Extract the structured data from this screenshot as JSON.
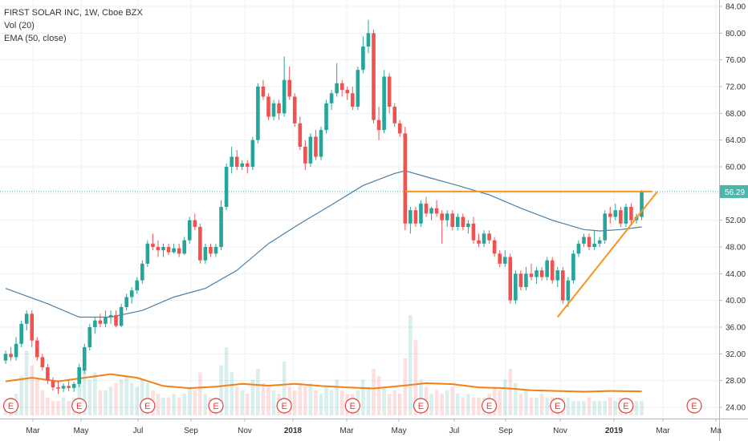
{
  "legend": {
    "title": "FIRST SOLAR INC, 1W, Cboe BZX",
    "volume": "Vol (20)",
    "ema": "EMA (50, close)"
  },
  "price_axis": {
    "ticks": [
      "84.00",
      "80.00",
      "76.00",
      "72.00",
      "68.00",
      "64.00",
      "60.00",
      "56.00",
      "52.00",
      "48.00",
      "44.00",
      "40.00",
      "36.00",
      "32.00",
      "28.00",
      "24.00"
    ],
    "last_price": "56.29"
  },
  "time_axis": {
    "labels": [
      "Mar",
      "May",
      "Jul",
      "Sep",
      "Nov",
      "2018",
      "Mar",
      "May",
      "Jul",
      "Sep",
      "Nov",
      "2019",
      "Mar",
      "Ma"
    ]
  },
  "earnings_marker": "E",
  "colors": {
    "up": "#26a69a",
    "down": "#ef5350",
    "ema": "#4a7fa8",
    "volume_ma": "#f57f17",
    "trendline": "#f7931e",
    "price_line": "#4db6ac",
    "grid": "#eef0f3",
    "marker": "#e53935"
  },
  "chart_data": {
    "type": "candlestick",
    "title": "FIRST SOLAR INC, 1W, Cboe BZX",
    "ylim": [
      22.5,
      85
    ],
    "x_range": [
      "2017-01-13",
      "2019-05-10"
    ],
    "weeks_start": "2017-01-20",
    "ohlc": [
      [
        31.0,
        32.5,
        30.5,
        32.0
      ],
      [
        32.0,
        33.0,
        31.0,
        31.5
      ],
      [
        31.5,
        34.5,
        31.0,
        33.5
      ],
      [
        33.5,
        37.0,
        33.0,
        36.5
      ],
      [
        36.5,
        38.5,
        35.5,
        38.0
      ],
      [
        38.0,
        38.5,
        33.0,
        34.0
      ],
      [
        34.0,
        34.5,
        31.0,
        31.5
      ],
      [
        31.5,
        32.0,
        29.5,
        30.0
      ],
      [
        30.0,
        30.5,
        27.5,
        28.0
      ],
      [
        28.0,
        28.5,
        26.5,
        27.0
      ],
      [
        27.0,
        28.0,
        26.0,
        26.8
      ],
      [
        26.8,
        27.6,
        26.3,
        27.2
      ],
      [
        27.2,
        28.0,
        26.4,
        26.9
      ],
      [
        26.9,
        27.8,
        26.3,
        27.5
      ],
      [
        27.5,
        30.5,
        27.0,
        30.0
      ],
      [
        29.5,
        33.5,
        29.0,
        33.0
      ],
      [
        33.0,
        36.5,
        32.5,
        36.0
      ],
      [
        36.0,
        37.5,
        35.0,
        37.0
      ],
      [
        37.0,
        38.0,
        36.0,
        36.5
      ],
      [
        36.5,
        38.5,
        36.0,
        37.5
      ],
      [
        37.5,
        38.5,
        36.5,
        37.8
      ],
      [
        37.8,
        38.5,
        36.0,
        36.2
      ],
      [
        36.2,
        39.5,
        36.0,
        39.0
      ],
      [
        39.0,
        41.0,
        38.5,
        40.5
      ],
      [
        40.5,
        42.0,
        39.5,
        41.5
      ],
      [
        41.5,
        43.5,
        41.0,
        43.0
      ],
      [
        43.0,
        46.0,
        42.5,
        45.5
      ],
      [
        45.5,
        49.0,
        45.0,
        48.5
      ],
      [
        48.5,
        50.0,
        47.5,
        48.0
      ],
      [
        48.0,
        49.0,
        46.5,
        47.5
      ],
      [
        47.5,
        48.5,
        46.5,
        48.0
      ],
      [
        48.0,
        48.5,
        46.8,
        47.2
      ],
      [
        47.2,
        48.5,
        47.0,
        47.8
      ],
      [
        47.8,
        48.5,
        46.5,
        47.0
      ],
      [
        47.0,
        49.5,
        46.8,
        49.0
      ],
      [
        49.0,
        52.5,
        48.5,
        52.0
      ],
      [
        52.0,
        53.0,
        50.5,
        51.0
      ],
      [
        51.0,
        51.5,
        45.5,
        46.0
      ],
      [
        46.0,
        48.5,
        45.5,
        48.0
      ],
      [
        48.0,
        48.5,
        46.5,
        47.0
      ],
      [
        47.0,
        48.5,
        46.5,
        48.0
      ],
      [
        48.0,
        55.0,
        47.5,
        54.0
      ],
      [
        54.0,
        60.5,
        53.5,
        60.0
      ],
      [
        60.0,
        63.0,
        59.0,
        61.5
      ],
      [
        61.5,
        62.5,
        59.5,
        60.0
      ],
      [
        60.0,
        61.0,
        59.5,
        60.5
      ],
      [
        60.5,
        61.0,
        59.0,
        60.0
      ],
      [
        60.0,
        64.5,
        59.5,
        64.0
      ],
      [
        64.0,
        72.5,
        63.5,
        72.0
      ],
      [
        72.0,
        73.0,
        70.0,
        70.5
      ],
      [
        70.5,
        71.0,
        67.0,
        67.5
      ],
      [
        67.5,
        70.0,
        67.0,
        69.5
      ],
      [
        69.5,
        70.0,
        67.0,
        68.0
      ],
      [
        68.0,
        76.5,
        67.5,
        73.0
      ],
      [
        73.0,
        75.0,
        70.0,
        70.5
      ],
      [
        70.5,
        71.0,
        66.0,
        66.5
      ],
      [
        66.5,
        67.5,
        62.5,
        63.0
      ],
      [
        63.0,
        64.0,
        59.5,
        60.5
      ],
      [
        60.5,
        65.0,
        60.0,
        64.5
      ],
      [
        64.5,
        65.5,
        61.0,
        61.5
      ],
      [
        61.5,
        66.0,
        61.0,
        65.5
      ],
      [
        65.5,
        70.0,
        65.0,
        69.5
      ],
      [
        69.5,
        71.5,
        68.5,
        71.0
      ],
      [
        71.0,
        75.5,
        70.5,
        72.5
      ],
      [
        72.5,
        73.0,
        70.5,
        71.5
      ],
      [
        71.5,
        72.0,
        70.0,
        71.0
      ],
      [
        71.0,
        72.0,
        68.5,
        69.0
      ],
      [
        69.0,
        75.0,
        68.5,
        74.5
      ],
      [
        74.5,
        79.5,
        74.0,
        78.0
      ],
      [
        78.0,
        82.0,
        77.0,
        80.0
      ],
      [
        80.0,
        80.5,
        66.5,
        67.0
      ],
      [
        67.0,
        69.0,
        64.0,
        65.5
      ],
      [
        65.5,
        74.5,
        65.0,
        73.5
      ],
      [
        73.5,
        74.0,
        68.0,
        69.0
      ],
      [
        69.0,
        69.5,
        66.0,
        66.5
      ],
      [
        66.5,
        67.0,
        64.5,
        65.0
      ],
      [
        65.0,
        66.0,
        50.5,
        51.5
      ],
      [
        51.5,
        54.0,
        50.0,
        53.5
      ],
      [
        53.5,
        54.0,
        51.0,
        51.5
      ],
      [
        51.5,
        55.0,
        51.0,
        54.5
      ],
      [
        54.5,
        55.5,
        52.5,
        53.0
      ],
      [
        53.0,
        54.0,
        52.0,
        53.8
      ],
      [
        53.8,
        55.0,
        52.5,
        53.0
      ],
      [
        53.0,
        53.5,
        48.5,
        52.0
      ],
      [
        52.0,
        53.5,
        51.0,
        53.0
      ],
      [
        53.0,
        53.5,
        50.5,
        51.0
      ],
      [
        51.0,
        53.0,
        50.5,
        52.5
      ],
      [
        52.5,
        53.0,
        50.5,
        51.0
      ],
      [
        51.0,
        52.0,
        50.0,
        51.5
      ],
      [
        51.5,
        52.5,
        48.5,
        49.0
      ],
      [
        49.0,
        50.0,
        48.0,
        48.5
      ],
      [
        48.5,
        50.5,
        48.0,
        50.0
      ],
      [
        50.0,
        50.5,
        48.5,
        49.0
      ],
      [
        49.0,
        49.5,
        46.5,
        47.0
      ],
      [
        47.0,
        47.5,
        45.0,
        45.5
      ],
      [
        45.5,
        47.5,
        45.0,
        46.5
      ],
      [
        46.5,
        47.0,
        39.5,
        40.0
      ],
      [
        40.0,
        44.5,
        39.5,
        44.0
      ],
      [
        44.0,
        44.5,
        41.5,
        42.0
      ],
      [
        42.0,
        45.0,
        41.5,
        44.0
      ],
      [
        44.0,
        45.5,
        43.0,
        43.5
      ],
      [
        43.5,
        45.0,
        42.5,
        44.5
      ],
      [
        44.5,
        45.0,
        43.0,
        43.5
      ],
      [
        43.5,
        46.5,
        43.0,
        46.0
      ],
      [
        46.0,
        46.5,
        42.5,
        43.0
      ],
      [
        43.0,
        45.0,
        42.0,
        44.5
      ],
      [
        44.5,
        45.0,
        39.5,
        40.0
      ],
      [
        40.0,
        43.5,
        39.0,
        43.0
      ],
      [
        43.0,
        47.5,
        42.5,
        47.0
      ],
      [
        47.0,
        49.0,
        46.5,
        48.5
      ],
      [
        48.5,
        50.0,
        48.0,
        49.5
      ],
      [
        49.5,
        50.0,
        47.5,
        48.0
      ],
      [
        48.0,
        50.5,
        47.5,
        48.5
      ],
      [
        48.5,
        49.5,
        48.0,
        49.0
      ],
      [
        49.0,
        53.5,
        48.5,
        53.0
      ],
      [
        53.0,
        54.0,
        51.5,
        52.5
      ],
      [
        52.5,
        54.5,
        52.0,
        53.5
      ],
      [
        53.5,
        54.0,
        51.0,
        51.5
      ],
      [
        51.5,
        54.5,
        51.0,
        54.0
      ],
      [
        54.0,
        54.5,
        51.5,
        52.0
      ],
      [
        52.0,
        53.0,
        51.5,
        52.5
      ],
      [
        52.5,
        56.5,
        52.0,
        56.3
      ]
    ],
    "ema": [
      [
        0,
        41.8
      ],
      [
        8,
        39.5
      ],
      [
        14,
        37.5
      ],
      [
        20,
        37.5
      ],
      [
        26,
        38.5
      ],
      [
        32,
        40.5
      ],
      [
        38,
        41.8
      ],
      [
        44,
        44.5
      ],
      [
        50,
        48.5
      ],
      [
        56,
        51.5
      ],
      [
        62,
        54.3
      ],
      [
        68,
        57.2
      ],
      [
        74,
        59.0
      ],
      [
        76,
        59.4
      ],
      [
        80,
        58.5
      ],
      [
        86,
        57.2
      ],
      [
        92,
        55.8
      ],
      [
        98,
        53.8
      ],
      [
        104,
        52.0
      ],
      [
        110,
        50.6
      ],
      [
        113,
        50.4
      ],
      [
        117,
        50.6
      ],
      [
        121,
        51.0
      ]
    ],
    "volume": [
      [
        0,
        4
      ],
      [
        1,
        5
      ],
      [
        2,
        6
      ],
      [
        3,
        11
      ],
      [
        4,
        18
      ],
      [
        5,
        14
      ],
      [
        6,
        10
      ],
      [
        7,
        7
      ],
      [
        8,
        5
      ],
      [
        9,
        4
      ],
      [
        10,
        4
      ],
      [
        11,
        5
      ],
      [
        12,
        4
      ],
      [
        13,
        5
      ],
      [
        14,
        9
      ],
      [
        15,
        14
      ],
      [
        16,
        10
      ],
      [
        17,
        12
      ],
      [
        18,
        7
      ],
      [
        19,
        7
      ],
      [
        20,
        8
      ],
      [
        21,
        9
      ],
      [
        22,
        10
      ],
      [
        23,
        11
      ],
      [
        24,
        9
      ],
      [
        25,
        8
      ],
      [
        26,
        10
      ],
      [
        27,
        9
      ],
      [
        28,
        7
      ],
      [
        29,
        6
      ],
      [
        30,
        5
      ],
      [
        31,
        5
      ],
      [
        32,
        6
      ],
      [
        33,
        5
      ],
      [
        34,
        6
      ],
      [
        35,
        8
      ],
      [
        36,
        7
      ],
      [
        37,
        12
      ],
      [
        38,
        6
      ],
      [
        39,
        5
      ],
      [
        40,
        5
      ],
      [
        41,
        14
      ],
      [
        42,
        19
      ],
      [
        43,
        12
      ],
      [
        44,
        8
      ],
      [
        45,
        7
      ],
      [
        46,
        6
      ],
      [
        47,
        10
      ],
      [
        48,
        13
      ],
      [
        49,
        9
      ],
      [
        50,
        8
      ],
      [
        51,
        7
      ],
      [
        52,
        6
      ],
      [
        53,
        15
      ],
      [
        54,
        8
      ],
      [
        55,
        7
      ],
      [
        56,
        9
      ],
      [
        57,
        8
      ],
      [
        58,
        9
      ],
      [
        59,
        7
      ],
      [
        60,
        6
      ],
      [
        61,
        8
      ],
      [
        62,
        7
      ],
      [
        63,
        10
      ],
      [
        64,
        7
      ],
      [
        65,
        6
      ],
      [
        66,
        6
      ],
      [
        67,
        7
      ],
      [
        68,
        10
      ],
      [
        69,
        8
      ],
      [
        70,
        13
      ],
      [
        71,
        11
      ],
      [
        72,
        8
      ],
      [
        73,
        6
      ],
      [
        74,
        7
      ],
      [
        75,
        6
      ],
      [
        76,
        16
      ],
      [
        77,
        28
      ],
      [
        78,
        21
      ],
      [
        79,
        10
      ],
      [
        80,
        8
      ],
      [
        81,
        6
      ],
      [
        82,
        7
      ],
      [
        83,
        6
      ],
      [
        84,
        7
      ],
      [
        85,
        8
      ],
      [
        86,
        6
      ],
      [
        87,
        5
      ],
      [
        88,
        6
      ],
      [
        89,
        5
      ],
      [
        90,
        5
      ],
      [
        91,
        5
      ],
      [
        92,
        6
      ],
      [
        93,
        8
      ],
      [
        94,
        7
      ],
      [
        95,
        10
      ],
      [
        96,
        13
      ],
      [
        97,
        9
      ],
      [
        98,
        6
      ],
      [
        99,
        7
      ],
      [
        100,
        5
      ],
      [
        101,
        5
      ],
      [
        102,
        6
      ],
      [
        103,
        5
      ],
      [
        104,
        5
      ],
      [
        105,
        4
      ],
      [
        106,
        5
      ],
      [
        107,
        5
      ],
      [
        108,
        4
      ],
      [
        109,
        4
      ],
      [
        110,
        4
      ],
      [
        111,
        5
      ],
      [
        112,
        4
      ],
      [
        113,
        4
      ],
      [
        114,
        4
      ],
      [
        115,
        5
      ],
      [
        116,
        4
      ],
      [
        117,
        5
      ],
      [
        118,
        4
      ],
      [
        119,
        4
      ],
      [
        120,
        4
      ],
      [
        121,
        4
      ]
    ],
    "volume_ma": [
      [
        0,
        9.5
      ],
      [
        5,
        10.5
      ],
      [
        10,
        9.5
      ],
      [
        15,
        10.5
      ],
      [
        20,
        11.5
      ],
      [
        25,
        10.5
      ],
      [
        30,
        8.2
      ],
      [
        35,
        7.6
      ],
      [
        40,
        8.0
      ],
      [
        45,
        8.8
      ],
      [
        50,
        8.3
      ],
      [
        55,
        8.8
      ],
      [
        60,
        8.2
      ],
      [
        65,
        7.8
      ],
      [
        70,
        7.5
      ],
      [
        75,
        8.2
      ],
      [
        80,
        9.0
      ],
      [
        85,
        8.7
      ],
      [
        90,
        7.8
      ],
      [
        95,
        7.6
      ],
      [
        100,
        7.0
      ],
      [
        105,
        6.8
      ],
      [
        110,
        6.6
      ],
      [
        115,
        6.8
      ],
      [
        121,
        6.7
      ]
    ],
    "resistance": {
      "y": 56.3,
      "from": 76,
      "to": 123
    },
    "support": [
      [
        105,
        37.5
      ],
      [
        124,
        56.3
      ]
    ],
    "earnings_weeks": [
      1,
      14,
      27,
      40,
      53,
      66,
      79,
      92,
      105,
      118,
      131
    ],
    "last_price": 56.29,
    "volume_max_hint": 28
  }
}
